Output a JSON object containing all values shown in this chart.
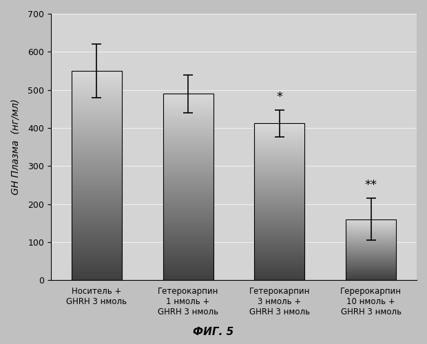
{
  "categories": [
    "Носитель +\nGHRH 3 нмоль",
    "Гетерокарпин\n1 нмоль +\nGHRH 3 нмоль",
    "Гетерокарпин\n3 нмоль +\nGHRH 3 нмоль",
    "Герерокарпин\n10 нмоль +\nGHRH 3 нмоль"
  ],
  "values": [
    550,
    490,
    412,
    160
  ],
  "errors": [
    70,
    50,
    35,
    55
  ],
  "ylim": [
    0,
    700
  ],
  "yticks": [
    0,
    100,
    200,
    300,
    400,
    500,
    600,
    700
  ],
  "ylabel": "GH Плазма  (нг/мл)",
  "title": "ФИГ. 5",
  "significance": [
    "",
    "",
    "*",
    "**"
  ],
  "bar_color_top": "#555555",
  "bar_color_bottom": "#dddddd",
  "background_color": "#c8c8c8",
  "plot_bg_color": "#d8d8d8",
  "fig_bg_color": "#d0d0d0"
}
